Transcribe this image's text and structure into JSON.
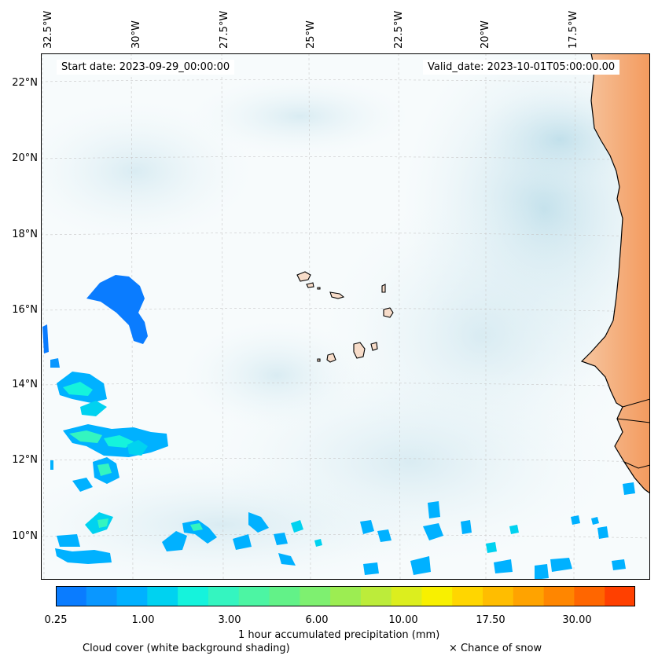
{
  "map": {
    "start_date": "Start date: 2023-09-29_00:00:00",
    "valid_date": "Valid_date: 2023-10-01T05:00:00.00",
    "longitude_labels": [
      "32.5°W",
      "30°W",
      "27.5°W",
      "25°W",
      "22.5°W",
      "20°W",
      "17.5°W"
    ],
    "latitude_labels": [
      "22°N",
      "20°N",
      "18°N",
      "16°N",
      "14°N",
      "12°N",
      "10°N"
    ],
    "gridlines": true,
    "land_color": "#f4a36b",
    "ocean_cloud_color": "#cfe6ee"
  },
  "colorbar": {
    "label": "1 hour accumulated precipitation (mm)",
    "tick_labels": [
      "0.25",
      "1.00",
      "3.00",
      "6.00",
      "10.00",
      "17.50",
      "30.00"
    ],
    "colors": [
      "#0a7cff",
      "#0a97ff",
      "#00b1ff",
      "#00d2f0",
      "#15f3dc",
      "#34f5c0",
      "#4cf5a3",
      "#62f288",
      "#7ef070",
      "#9ced52",
      "#bcec3a",
      "#dcee1e",
      "#f8f000",
      "#ffd600",
      "#ffbd00",
      "#ffa300",
      "#ff8600",
      "#ff6600",
      "#ff4000"
    ]
  },
  "legend": {
    "cloud_cover": "Cloud cover (white background shading)",
    "snow": "× Chance of snow"
  }
}
